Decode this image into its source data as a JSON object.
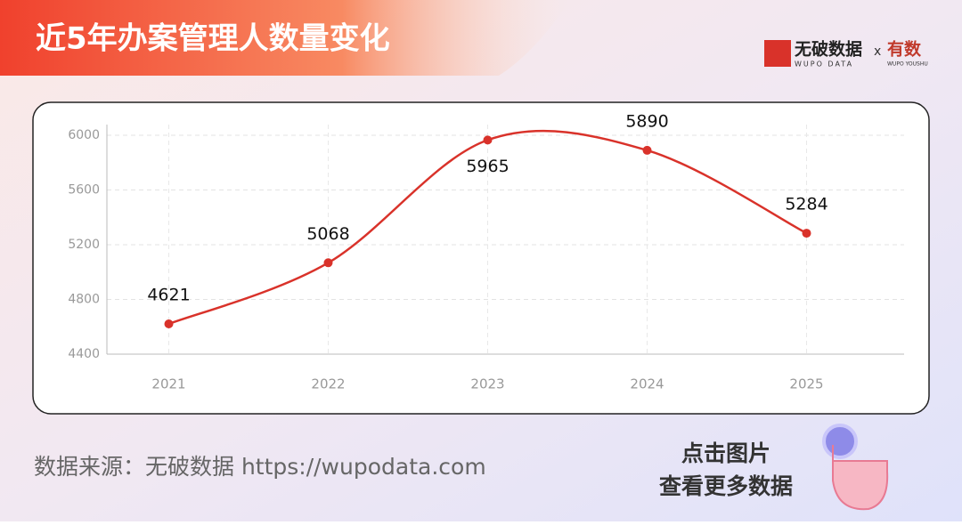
{
  "header": {
    "title": "近5年办案管理人数量变化",
    "logo": "无破数据",
    "logo_sub": "WUPO DATA",
    "cross": "x",
    "partner": "有数",
    "partner_sub": "WUPO YOUSHU"
  },
  "chart_data": {
    "type": "line",
    "categories": [
      "2021",
      "2022",
      "2023",
      "2024",
      "2025"
    ],
    "series": [
      {
        "values": [
          4621,
          5068,
          5965,
          5890,
          5284
        ],
        "color": "#d9322a"
      }
    ],
    "ylim": [
      4400,
      6000
    ],
    "yticks": [
      4400,
      4800,
      5200,
      5600,
      6000
    ],
    "grid": true,
    "smooth": true
  },
  "footer": {
    "source": "数据来源：无破数据 https://wupodata.com",
    "cta_line1": "点击图片",
    "cta_line2": "查看更多数据"
  }
}
